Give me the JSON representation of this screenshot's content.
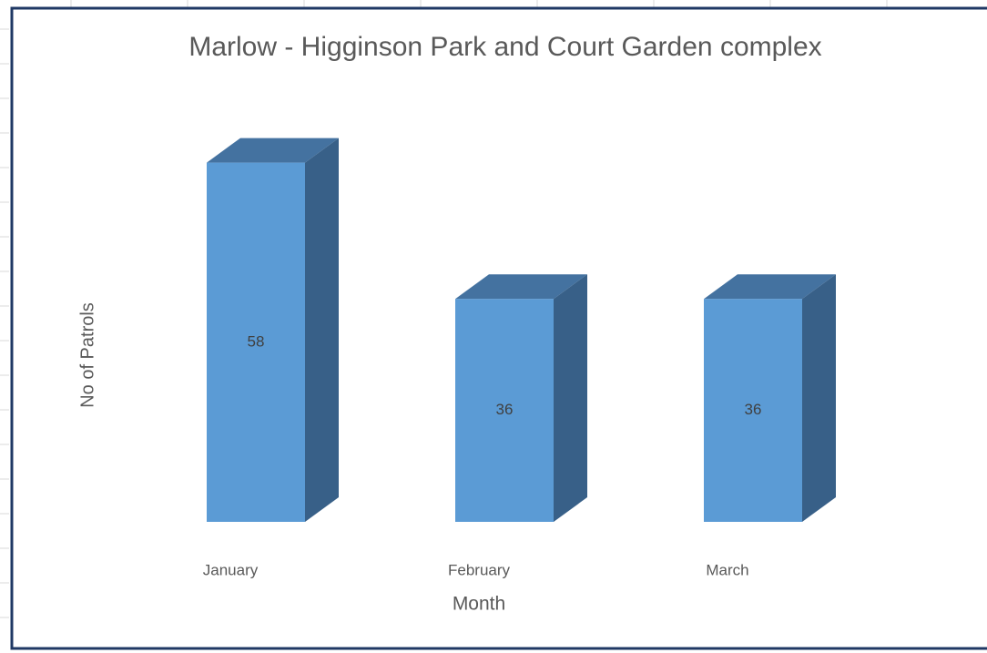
{
  "chart_data": {
    "type": "bar3d",
    "title": "Marlow - Higginson Park and Court Garden complex",
    "x_label": "Month",
    "y_label": "No of Patrols",
    "categories": [
      "January",
      "February",
      "March"
    ],
    "values": [
      58,
      36,
      36
    ],
    "color": "#5b9bd5",
    "ylim": [
      0,
      60
    ]
  }
}
